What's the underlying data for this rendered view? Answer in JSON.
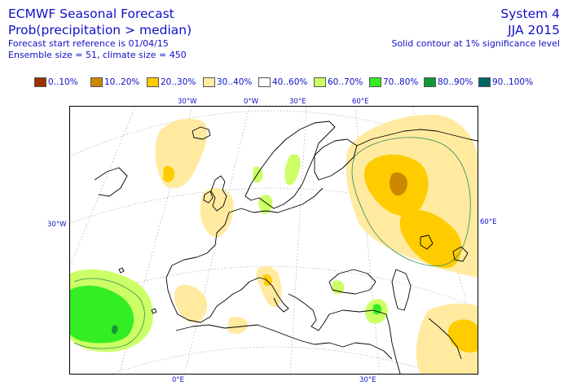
{
  "header": {
    "title": "ECMWF Seasonal Forecast",
    "subtitle": "Prob(precipitation > median)",
    "start_reference": "Forecast start reference is 01/04/15",
    "ensemble": "Ensemble size = 51, climate size = 450",
    "system": "System 4",
    "season": "JJA 2015",
    "contour_note": "Solid contour at 1% significance level"
  },
  "legend": [
    {
      "label": "0..10%",
      "color": "#993300"
    },
    {
      "label": "10..20%",
      "color": "#cc8800"
    },
    {
      "label": "20..30%",
      "color": "#ffcc00"
    },
    {
      "label": "30..40%",
      "color": "#ffeaa0"
    },
    {
      "label": "40..60%",
      "color": "#ffffff"
    },
    {
      "label": "60..70%",
      "color": "#ccff66"
    },
    {
      "label": "70..80%",
      "color": "#33ee22"
    },
    {
      "label": "80..90%",
      "color": "#119933"
    },
    {
      "label": "90..100%",
      "color": "#006666"
    }
  ],
  "coordinates": {
    "lon_top": [
      "30°W",
      "0°W",
      "30°E",
      "60°E"
    ],
    "lon_bottom": [
      "0°E",
      "30°E"
    ],
    "lat_left": "30°W",
    "lat_right": "60°E"
  },
  "colors": {
    "text": "#1010c8",
    "coast": "#000000",
    "grid": "#999999"
  }
}
